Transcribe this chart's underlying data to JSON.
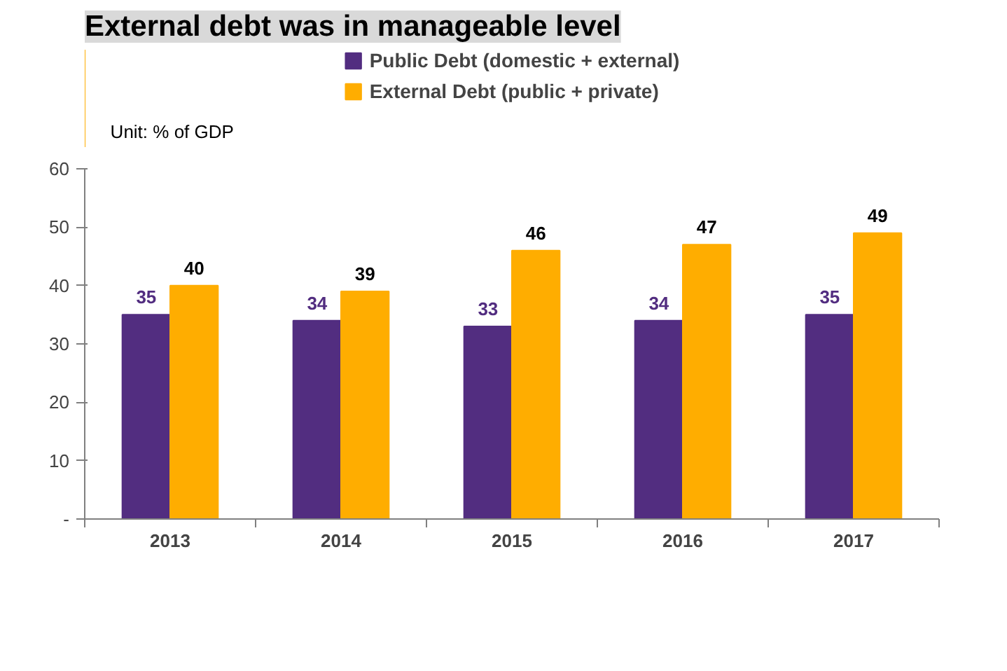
{
  "chart_data": {
    "type": "bar",
    "title": "External debt was in manageable level",
    "ylabel": "Unit: % of GDP",
    "categories": [
      "2013",
      "2014",
      "2015",
      "2016",
      "2017"
    ],
    "series": [
      {
        "name": "Public Debt (domestic + external)",
        "color": "#522d80",
        "values": [
          35,
          34,
          33,
          34,
          35
        ]
      },
      {
        "name": "External Debt (public + private)",
        "color": "#ffad00",
        "values": [
          40,
          39,
          46,
          47,
          49
        ]
      }
    ],
    "ylim": [
      0,
      60
    ],
    "yticks": [
      {
        "value": 0,
        "label": "-"
      },
      10,
      20,
      30,
      40,
      50,
      60
    ],
    "data_labels": true,
    "legend": "top",
    "grid": false
  }
}
